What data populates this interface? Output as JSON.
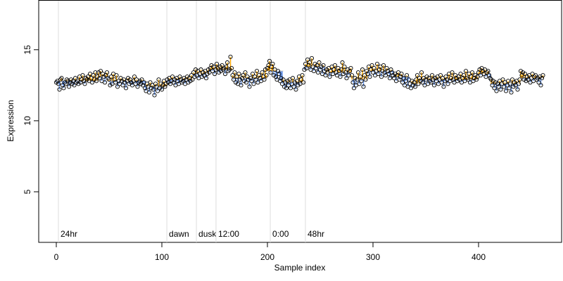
{
  "chart_data": {
    "type": "scatter",
    "x_label": "Sample index",
    "y_label": "Expression",
    "xlim": [
      -16.67,
      478.67
    ],
    "ylim": [
      1.44,
      18.5
    ],
    "xticks": [
      0,
      100,
      200,
      300,
      400
    ],
    "yticks": [
      5,
      10,
      15
    ],
    "point_color": "#000000",
    "above_color": "#ffa500",
    "below_color": "#6495ed",
    "event_color": "#dddddd",
    "event_label_color": "#aaaaaa",
    "events": [
      {
        "x": 2,
        "label": "24hr"
      },
      {
        "x": 104.7,
        "label": "dawn"
      },
      {
        "x": 132.7,
        "label": "dusk"
      },
      {
        "x": 151.3,
        "label": "12:00"
      },
      {
        "x": 202.7,
        "label": "0:00"
      },
      {
        "x": 236,
        "label": "48hr"
      }
    ],
    "levels": [
      {
        "start": 0,
        "end": 40,
        "value": 12.8
      },
      {
        "start": 40,
        "end": 50,
        "value": 13.1
      },
      {
        "start": 50,
        "end": 85,
        "value": 12.8
      },
      {
        "start": 85,
        "end": 105,
        "value": 12.4
      },
      {
        "start": 105,
        "end": 130,
        "value": 12.9
      },
      {
        "start": 130,
        "end": 145,
        "value": 13.3
      },
      {
        "start": 145,
        "end": 167,
        "value": 13.6
      },
      {
        "start": 167,
        "end": 200,
        "value": 13.0
      },
      {
        "start": 200,
        "end": 215,
        "value": 13.5
      },
      {
        "start": 215,
        "end": 235,
        "value": 12.7
      },
      {
        "start": 235,
        "end": 255,
        "value": 13.8
      },
      {
        "start": 255,
        "end": 280,
        "value": 13.4
      },
      {
        "start": 280,
        "end": 295,
        "value": 12.9
      },
      {
        "start": 295,
        "end": 320,
        "value": 13.5
      },
      {
        "start": 320,
        "end": 335,
        "value": 13.1
      },
      {
        "start": 335,
        "end": 345,
        "value": 12.6
      },
      {
        "start": 345,
        "end": 400,
        "value": 12.9
      },
      {
        "start": 400,
        "end": 412,
        "value": 13.3
      },
      {
        "start": 412,
        "end": 440,
        "value": 12.6
      },
      {
        "start": 440,
        "end": 462,
        "value": 13.0
      }
    ],
    "values": [
      12.7,
      12.8,
      12.6,
      12.2,
      12.9,
      13.0,
      12.5,
      12.3,
      12.7,
      12.6,
      12.9,
      12.8,
      12.4,
      12.7,
      12.9,
      12.6,
      12.8,
      12.5,
      13.0,
      12.7,
      12.8,
      12.6,
      13.1,
      12.7,
      12.9,
      13.2,
      12.8,
      12.6,
      13.0,
      12.9,
      13.1,
      12.8,
      13.3,
      13.0,
      12.7,
      13.2,
      12.9,
      13.4,
      12.8,
      13.1,
      13.4,
      13.0,
      13.5,
      12.8,
      13.3,
      13.1,
      12.7,
      13.2,
      13.4,
      13.0,
      12.9,
      12.5,
      13.1,
      12.6,
      13.3,
      12.9,
      12.7,
      13.2,
      12.4,
      12.8,
      12.6,
      13.0,
      12.8,
      12.5,
      12.9,
      12.7,
      12.3,
      12.8,
      13.0,
      12.6,
      12.9,
      12.7,
      12.5,
      12.8,
      13.1,
      12.6,
      12.9,
      12.4,
      12.7,
      12.8,
      12.6,
      12.9,
      12.5,
      12.7,
      12.3,
      12.1,
      12.6,
      12.4,
      12.0,
      12.7,
      12.3,
      12.5,
      12.2,
      11.8,
      12.6,
      12.4,
      12.1,
      12.9,
      12.3,
      12.6,
      12.2,
      12.5,
      12.8,
      12.4,
      12.6,
      12.9,
      12.7,
      13.0,
      12.6,
      12.8,
      13.1,
      12.7,
      12.9,
      12.5,
      13.0,
      12.8,
      12.6,
      13.1,
      12.9,
      12.7,
      12.8,
      13.0,
      12.6,
      12.9,
      13.1,
      12.7,
      13.0,
      12.8,
      13.2,
      12.9,
      13.4,
      13.1,
      13.6,
      13.2,
      13.5,
      13.0,
      13.3,
      13.6,
      13.1,
      13.4,
      13.2,
      13.5,
      13.0,
      13.3,
      13.6,
      13.4,
      13.7,
      13.9,
      13.5,
      13.8,
      13.3,
      13.6,
      14.0,
      13.7,
      13.4,
      13.8,
      13.5,
      13.9,
      13.6,
      13.7,
      13.3,
      13.8,
      14.1,
      13.5,
      13.6,
      14.5,
      13.7,
      13.2,
      12.9,
      13.4,
      12.7,
      13.1,
      12.6,
      13.3,
      12.9,
      12.5,
      13.0,
      13.2,
      12.8,
      13.4,
      12.7,
      13.1,
      12.9,
      12.4,
      13.0,
      12.8,
      13.3,
      12.6,
      13.1,
      12.9,
      13.5,
      12.7,
      13.2,
      13.0,
      12.8,
      13.4,
      13.1,
      12.9,
      13.6,
      13.2,
      13.7,
      13.9,
      14.2,
      13.4,
      13.8,
      14.0,
      13.2,
      13.6,
      13.1,
      12.9,
      13.5,
      13.3,
      12.8,
      13.0,
      12.6,
      12.9,
      12.4,
      12.7,
      12.3,
      12.8,
      12.5,
      12.9,
      12.3,
      12.6,
      13.0,
      12.4,
      12.7,
      12.2,
      12.8,
      12.5,
      13.1,
      12.6,
      12.9,
      13.2,
      12.7,
      13.6,
      14.0,
      13.7,
      14.3,
      13.9,
      14.1,
      13.6,
      14.4,
      13.8,
      13.5,
      14.0,
      13.7,
      13.9,
      13.4,
      14.1,
      13.6,
      13.8,
      13.3,
      13.9,
      13.5,
      13.2,
      13.6,
      13.4,
      13.7,
      13.1,
      13.5,
      13.8,
      13.3,
      13.6,
      13.9,
      13.4,
      13.2,
      13.7,
      13.5,
      13.1,
      13.6,
      14.1,
      13.3,
      13.8,
      13.4,
      13.0,
      13.6,
      13.2,
      13.5,
      13.7,
      13.2,
      12.7,
      12.3,
      13.0,
      12.5,
      12.9,
      13.4,
      12.6,
      13.1,
      12.8,
      13.6,
      12.4,
      13.2,
      12.9,
      13.5,
      13.3,
      13.8,
      13.1,
      13.6,
      13.9,
      13.4,
      13.7,
      13.2,
      13.5,
      14.0,
      13.3,
      13.6,
      13.8,
      13.1,
      13.5,
      13.9,
      13.4,
      13.2,
      13.7,
      13.5,
      13.3,
      13.0,
      13.6,
      13.4,
      13.2,
      13.0,
      13.3,
      12.8,
      13.2,
      13.4,
      12.9,
      13.1,
      13.3,
      12.7,
      13.0,
      12.5,
      12.8,
      13.2,
      12.4,
      12.9,
      12.6,
      12.3,
      12.8,
      12.5,
      12.7,
      12.4,
      12.9,
      13.2,
      12.6,
      13.0,
      12.8,
      13.4,
      12.7,
      13.0,
      12.5,
      12.9,
      13.1,
      12.6,
      13.0,
      12.8,
      12.7,
      13.2,
      12.9,
      12.5,
      13.0,
      12.8,
      13.1,
      12.6,
      12.9,
      13.2,
      12.7,
      13.0,
      12.4,
      12.8,
      13.1,
      12.9,
      12.6,
      13.3,
      12.8,
      13.0,
      13.4,
      12.9,
      12.7,
      13.2,
      13.0,
      12.8,
      13.1,
      12.9,
      13.3,
      12.7,
      13.0,
      13.2,
      12.8,
      13.5,
      13.0,
      12.9,
      13.3,
      12.7,
      13.1,
      13.4,
      12.8,
      13.0,
      13.2,
      12.9,
      13.1,
      13.4,
      13.6,
      13.2,
      13.7,
      13.5,
      13.3,
      13.6,
      13.1,
      13.4,
      13.5,
      13.2,
      13.0,
      12.9,
      12.5,
      12.8,
      12.3,
      12.7,
      12.1,
      12.6,
      12.4,
      12.8,
      12.2,
      12.6,
      12.9,
      12.4,
      12.7,
      12.1,
      12.5,
      12.8,
      12.3,
      12.6,
      12.0,
      12.9,
      12.4,
      12.7,
      12.5,
      12.8,
      12.2,
      12.6,
      12.9,
      13.5,
      13.2,
      13.4,
      12.9,
      13.3,
      12.8,
      13.1,
      12.9,
      13.2,
      12.7,
      13.0,
      13.3,
      12.8,
      13.1,
      13.2,
      12.9,
      13.0,
      12.7,
      13.1,
      12.5,
      13.0,
      13.2
    ]
  }
}
